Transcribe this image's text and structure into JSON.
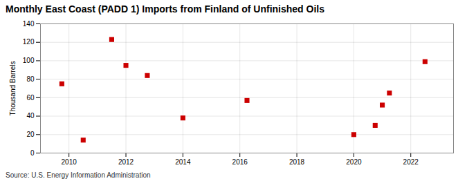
{
  "chart_data": {
    "type": "scatter",
    "title": "Monthly East Coast (PADD 1) Imports from Finland of Unfinished Oils",
    "ylabel": "Thousand Barrels",
    "source": "Source: U.S. Energy Information Administration",
    "x": [
      2009.75,
      2010.5,
      2011.5,
      2012.0,
      2012.75,
      2014.0,
      2016.25,
      2020.0,
      2020.75,
      2021.0,
      2021.25,
      2022.5
    ],
    "values": [
      75,
      14,
      123,
      95,
      84,
      38,
      57,
      20,
      30,
      52,
      65,
      99
    ],
    "color": "#cc0000",
    "marker": "square",
    "xlim": [
      2009,
      2023.5
    ],
    "ylim": [
      0,
      140
    ],
    "xticks": [
      2010,
      2012,
      2014,
      2016,
      2018,
      2020,
      2022
    ],
    "yticks": [
      0,
      20,
      40,
      60,
      80,
      100,
      120,
      140
    ],
    "grid": true
  }
}
